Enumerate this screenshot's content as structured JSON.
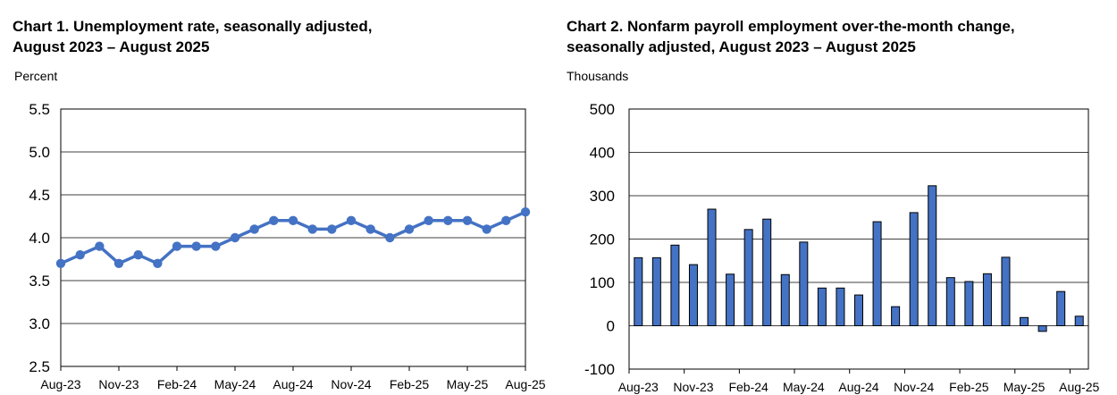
{
  "chart_data": [
    {
      "type": "line",
      "title_line1": "Chart 1. Unemployment rate, seasonally adjusted,",
      "title_line2": "August 2023 – August 2025",
      "ylabel": "Percent",
      "ylim": [
        2.5,
        5.5
      ],
      "yticks": [
        "2.5",
        "3.0",
        "3.5",
        "4.0",
        "4.5",
        "5.0",
        "5.5"
      ],
      "xtick_labels": [
        "Aug-23",
        "Nov-23",
        "Feb-24",
        "May-24",
        "Aug-24",
        "Nov-24",
        "Feb-25",
        "May-25",
        "Aug-25"
      ],
      "grid": true,
      "color": "#4472C4",
      "categories": [
        "Aug-23",
        "Sep-23",
        "Oct-23",
        "Nov-23",
        "Dec-23",
        "Jan-24",
        "Feb-24",
        "Mar-24",
        "Apr-24",
        "May-24",
        "Jun-24",
        "Jul-24",
        "Aug-24",
        "Sep-24",
        "Oct-24",
        "Nov-24",
        "Dec-24",
        "Jan-25",
        "Feb-25",
        "Mar-25",
        "Apr-25",
        "May-25",
        "Jun-25",
        "Jul-25",
        "Aug-25"
      ],
      "values": [
        3.7,
        3.8,
        3.9,
        3.7,
        3.8,
        3.7,
        3.9,
        3.9,
        3.9,
        4.0,
        4.1,
        4.2,
        4.2,
        4.1,
        4.1,
        4.2,
        4.1,
        4.0,
        4.1,
        4.2,
        4.2,
        4.2,
        4.1,
        4.2,
        4.3
      ]
    },
    {
      "type": "bar",
      "title_line1": "Chart 2. Nonfarm payroll employment over-the-month change,",
      "title_line2": "seasonally adjusted, August 2023 – August 2025",
      "ylabel": "Thousands",
      "ylim": [
        -100,
        500
      ],
      "yticks": [
        "-100",
        "0",
        "100",
        "200",
        "300",
        "400",
        "500"
      ],
      "xtick_labels": [
        "Aug-23",
        "Nov-23",
        "Feb-24",
        "May-24",
        "Aug-24",
        "Nov-24",
        "Feb-25",
        "May-25",
        "Aug-25"
      ],
      "grid": true,
      "color": "#4472C4",
      "categories": [
        "Aug-23",
        "Sep-23",
        "Oct-23",
        "Nov-23",
        "Dec-23",
        "Jan-24",
        "Feb-24",
        "Mar-24",
        "Apr-24",
        "May-24",
        "Jun-24",
        "Jul-24",
        "Aug-24",
        "Sep-24",
        "Oct-24",
        "Nov-24",
        "Dec-24",
        "Jan-25",
        "Feb-25",
        "Mar-25",
        "Apr-25",
        "May-25",
        "Jun-25",
        "Jul-25",
        "Aug-25"
      ],
      "values": [
        157,
        157,
        186,
        141,
        269,
        119,
        222,
        246,
        118,
        193,
        87,
        87,
        71,
        240,
        44,
        261,
        323,
        111,
        102,
        120,
        158,
        19,
        -13,
        79,
        22
      ]
    }
  ]
}
